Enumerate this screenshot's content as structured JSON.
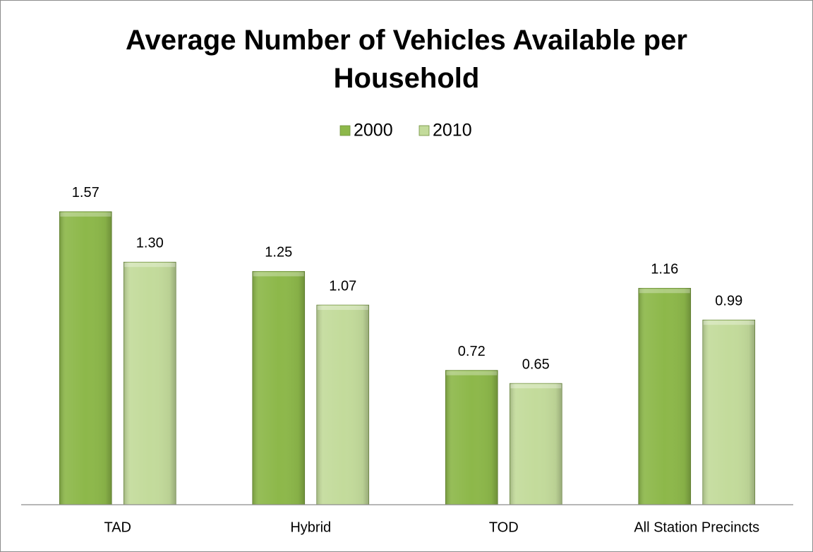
{
  "chart_data": {
    "type": "bar",
    "title": "Average Number of Vehicles Available per Household",
    "categories": [
      "TAD",
      "Hybrid",
      "TOD",
      "All Station Precincts"
    ],
    "series": [
      {
        "name": "2000",
        "color": "#8db84a",
        "values": [
          1.57,
          1.25,
          0.72,
          1.16
        ],
        "value_labels": [
          "1.57",
          "1.25",
          "0.72",
          "1.16"
        ]
      },
      {
        "name": "2010",
        "color": "#c3db9b",
        "values": [
          1.3,
          1.07,
          0.65,
          0.99
        ],
        "value_labels": [
          "1.30",
          "1.07",
          "0.65",
          "0.99"
        ]
      }
    ],
    "ylim": [
      0,
      1.8
    ],
    "legend": "top"
  }
}
